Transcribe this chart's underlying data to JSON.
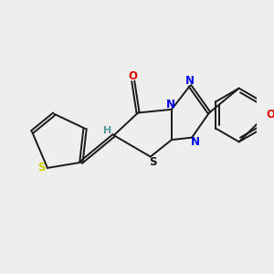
{
  "background_color": "#eeeeee",
  "figsize": [
    3.0,
    3.0
  ],
  "dpi": 100,
  "bond_color": "#1a1a1a",
  "bond_lw": 1.4,
  "atom_colors": {
    "S": "#cccc00",
    "N": "#0000ee",
    "O": "#dd0000",
    "H": "#559999",
    "C": "#1a1a1a",
    "S2": "#1a1a1a"
  },
  "font_size": 8.5,
  "xlim": [
    0.0,
    1.0
  ],
  "ylim": [
    0.18,
    0.82
  ]
}
